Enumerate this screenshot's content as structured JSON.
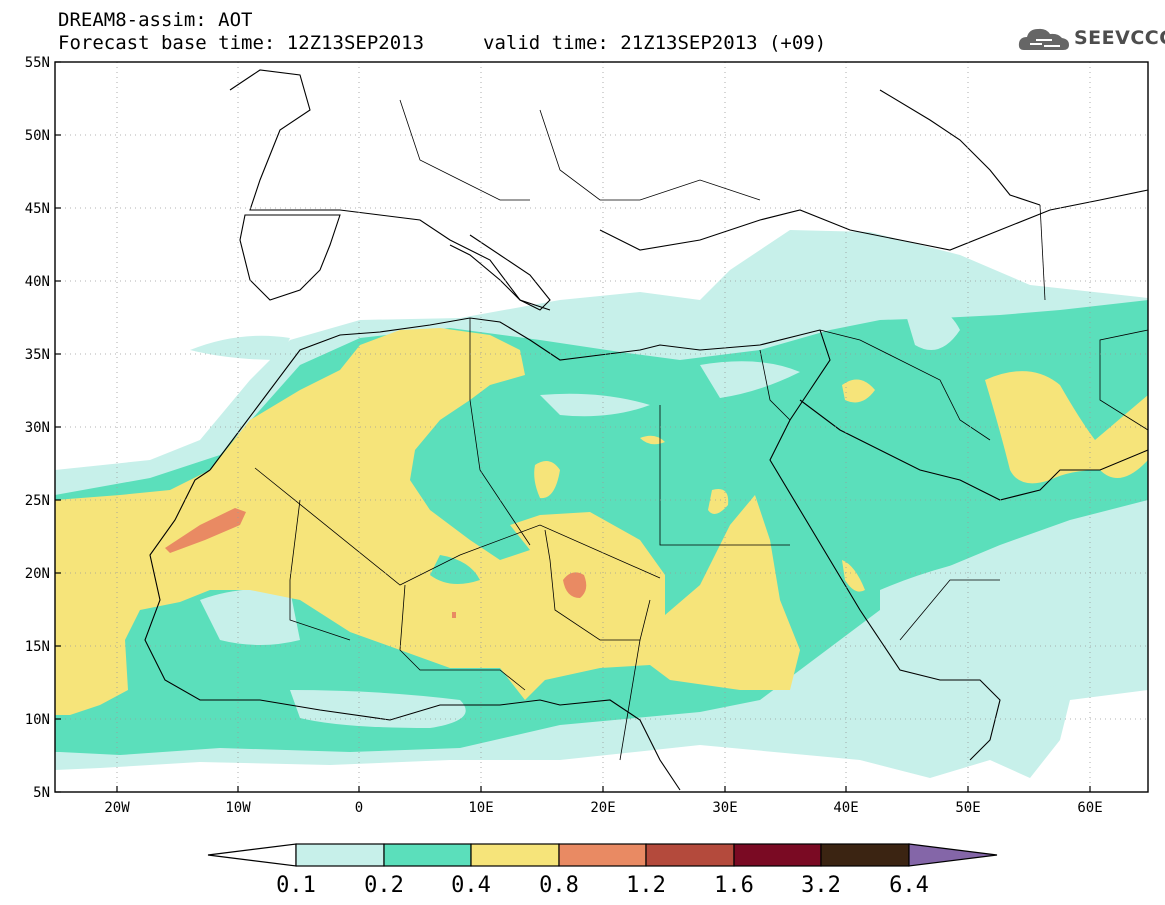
{
  "header": {
    "title": "DREAM8-assim: AOT",
    "base_time": "Forecast base time: 12Z13SEP2013",
    "valid_time": "valid time: 21Z13SEP2013 (+09)",
    "logo_text": "SEEVCCC",
    "logo_icon": "cloud-icon"
  },
  "map": {
    "lat_labels": [
      "55N",
      "50N",
      "45N",
      "40N",
      "35N",
      "30N",
      "25N",
      "20N",
      "15N",
      "10N",
      "5N"
    ],
    "lon_labels": [
      "20W",
      "10W",
      "0",
      "10E",
      "20E",
      "30E",
      "40E",
      "50E",
      "60E"
    ],
    "lat_range": [
      5,
      55
    ],
    "lon_range": [
      -25,
      65
    ],
    "grid": true
  },
  "colorbar": {
    "labels": [
      "0.1",
      "0.2",
      "0.4",
      "0.8",
      "1.2",
      "1.6",
      "3.2",
      "6.4"
    ],
    "colors": [
      "#ffffff",
      "#c7f0ea",
      "#5bdfbb",
      "#f6e47a",
      "#e98a63",
      "#b44a3c",
      "#7a0a23",
      "#3b2412",
      "#8466a8"
    ]
  }
}
